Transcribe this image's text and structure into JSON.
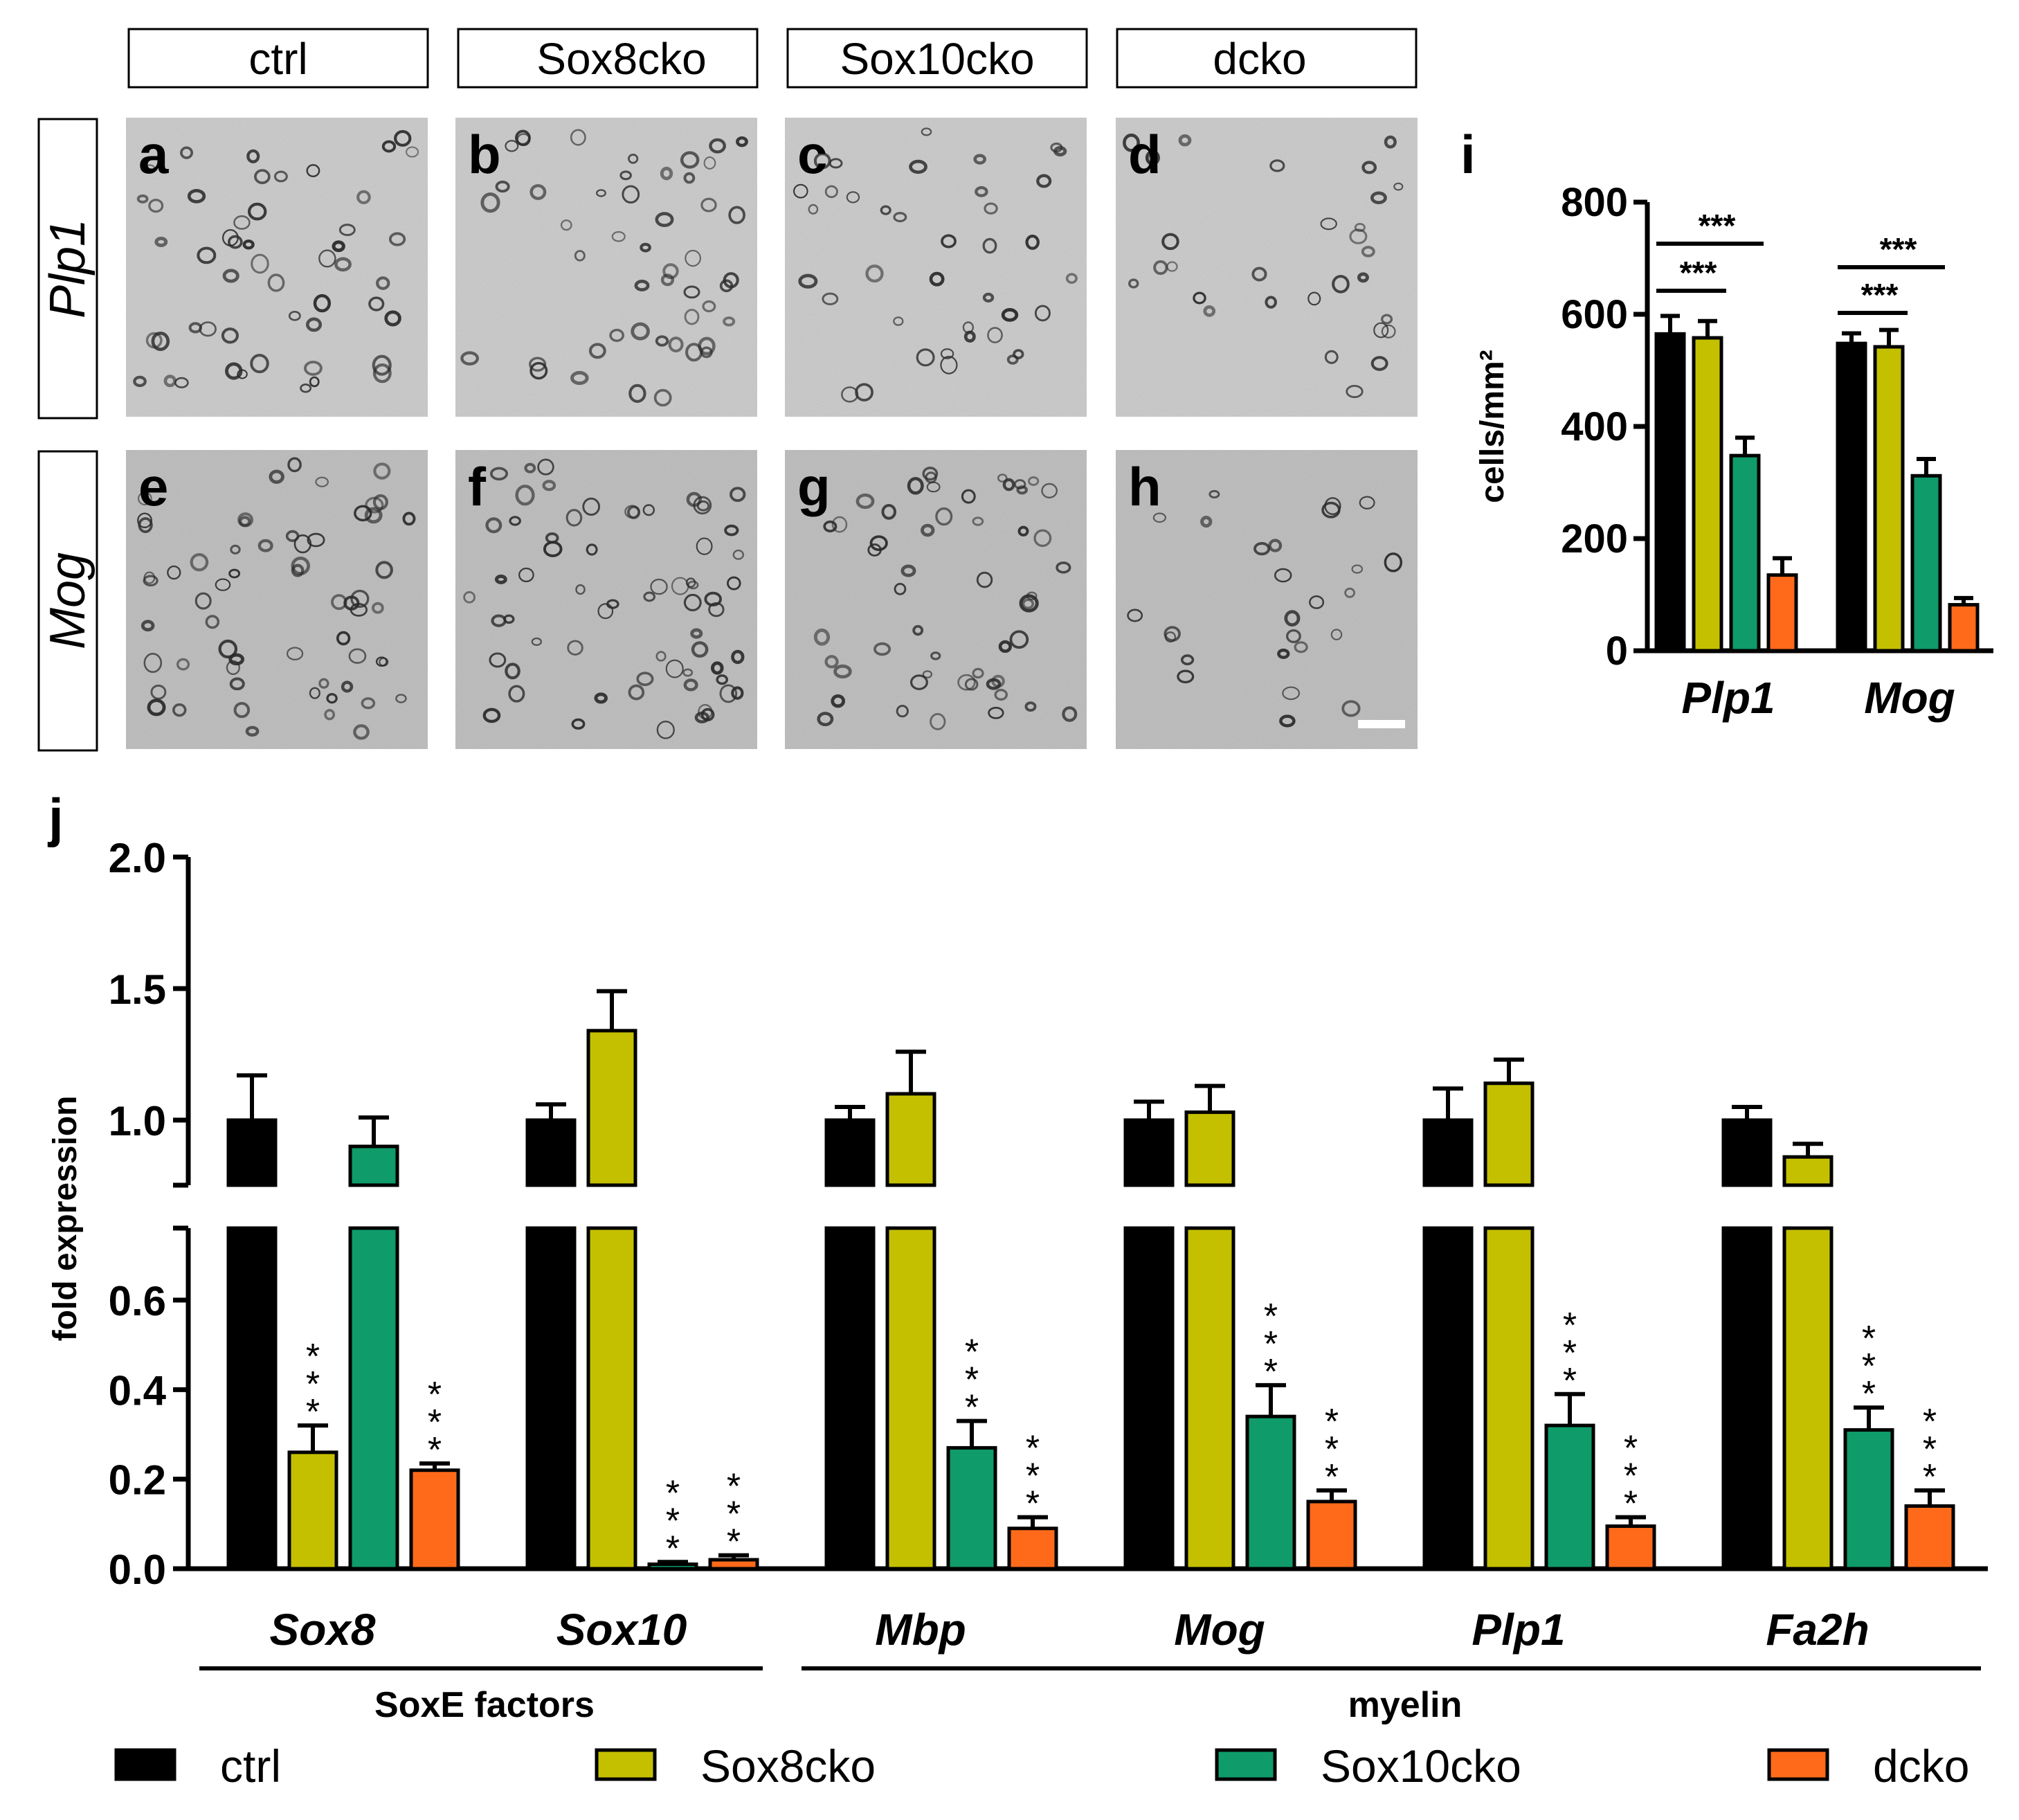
{
  "panel_letters": {
    "top_row": [
      "a",
      "b",
      "c",
      "d"
    ],
    "bottom_row": [
      "e",
      "f",
      "g",
      "h"
    ],
    "chart_i": "i",
    "chart_j": "j"
  },
  "column_headers": [
    "ctrl",
    "Sox8cko",
    "Sox10cko",
    "dcko"
  ],
  "row_labels": [
    "Plp1",
    "Mog"
  ],
  "colors": {
    "ctrl": "#000000",
    "Sox8cko": "#c4c000",
    "Sox10cko": "#0f9b6a",
    "dcko": "#ff6a1a",
    "micrograph_bg": "#c8c8c8",
    "cell_stain": "#2a2a2a"
  },
  "chart_data": [
    {
      "id": "i",
      "type": "bar",
      "title": "",
      "ylabel": "cells/mm²",
      "xlabel": "",
      "ylim": [
        0,
        800
      ],
      "yticks": [
        "0",
        "200",
        "400",
        "600",
        "800"
      ],
      "categories": [
        "Plp1",
        "Mog"
      ],
      "series": [
        {
          "name": "ctrl",
          "values": [
            565,
            548
          ],
          "errors": [
            32,
            18
          ]
        },
        {
          "name": "Sox8cko",
          "values": [
            558,
            542
          ],
          "errors": [
            30,
            30
          ]
        },
        {
          "name": "Sox10cko",
          "values": [
            348,
            312
          ],
          "errors": [
            32,
            30
          ]
        },
        {
          "name": "dcko",
          "values": [
            135,
            82
          ],
          "errors": [
            30,
            12
          ]
        }
      ],
      "significance": [
        {
          "category": "Plp1",
          "text": "***",
          "from": "ctrl",
          "to": "dcko"
        },
        {
          "category": "Plp1",
          "text": "***",
          "from": "ctrl",
          "to": "Sox10cko"
        },
        {
          "category": "Mog",
          "text": "***",
          "from": "ctrl",
          "to": "dcko"
        },
        {
          "category": "Mog",
          "text": "***",
          "from": "ctrl",
          "to": "Sox10cko"
        }
      ]
    },
    {
      "id": "j",
      "type": "bar",
      "title": "",
      "ylabel": "fold expression",
      "xlabel": "",
      "axis_break": [
        0.75,
        0.85
      ],
      "ylim": [
        0,
        2.0
      ],
      "yticks_lower": [
        "0.0",
        "0.2",
        "0.4",
        "0.6"
      ],
      "yticks_upper": [
        "1.0",
        "1.5",
        "2.0"
      ],
      "categories": [
        "Sox8",
        "Sox10",
        "Mbp",
        "Mog",
        "Plp1",
        "Fa2h"
      ],
      "groups": [
        {
          "label": "SoxE factors",
          "categories": [
            "Sox8",
            "Sox10"
          ]
        },
        {
          "label": "myelin",
          "categories": [
            "Mbp",
            "Mog",
            "Plp1",
            "Fa2h"
          ]
        }
      ],
      "series": [
        {
          "name": "ctrl",
          "values": [
            1.0,
            1.0,
            1.0,
            1.0,
            1.0,
            1.0
          ],
          "errors": [
            0.17,
            0.06,
            0.05,
            0.07,
            0.12,
            0.05
          ]
        },
        {
          "name": "Sox8cko",
          "values": [
            0.26,
            1.34,
            1.1,
            1.03,
            1.14,
            0.86
          ],
          "errors": [
            0.06,
            0.15,
            0.16,
            0.1,
            0.09,
            0.05
          ]
        },
        {
          "name": "Sox10cko",
          "values": [
            0.9,
            0.01,
            0.27,
            0.34,
            0.32,
            0.31
          ],
          "errors": [
            0.11,
            0.005,
            0.06,
            0.07,
            0.07,
            0.05
          ]
        },
        {
          "name": "dcko",
          "values": [
            0.22,
            0.02,
            0.09,
            0.15,
            0.095,
            0.14
          ],
          "errors": [
            0.015,
            0.01,
            0.025,
            0.025,
            0.02,
            0.035
          ]
        }
      ],
      "stars": [
        {
          "category": "Sox8",
          "series": "Sox8cko",
          "text": "***"
        },
        {
          "category": "Sox8",
          "series": "dcko",
          "text": "***"
        },
        {
          "category": "Sox10",
          "series": "Sox10cko",
          "text": "***"
        },
        {
          "category": "Sox10",
          "series": "dcko",
          "text": "***"
        },
        {
          "category": "Mbp",
          "series": "Sox10cko",
          "text": "***"
        },
        {
          "category": "Mbp",
          "series": "dcko",
          "text": "***"
        },
        {
          "category": "Mog",
          "series": "Sox10cko",
          "text": "***"
        },
        {
          "category": "Mog",
          "series": "dcko",
          "text": "***"
        },
        {
          "category": "Plp1",
          "series": "Sox10cko",
          "text": "***"
        },
        {
          "category": "Plp1",
          "series": "dcko",
          "text": "***"
        },
        {
          "category": "Fa2h",
          "series": "Sox10cko",
          "text": "***"
        },
        {
          "category": "Fa2h",
          "series": "dcko",
          "text": "***"
        }
      ],
      "legend": [
        "ctrl",
        "Sox8cko",
        "Sox10cko",
        "dcko"
      ],
      "legend_position": "bottom"
    }
  ]
}
